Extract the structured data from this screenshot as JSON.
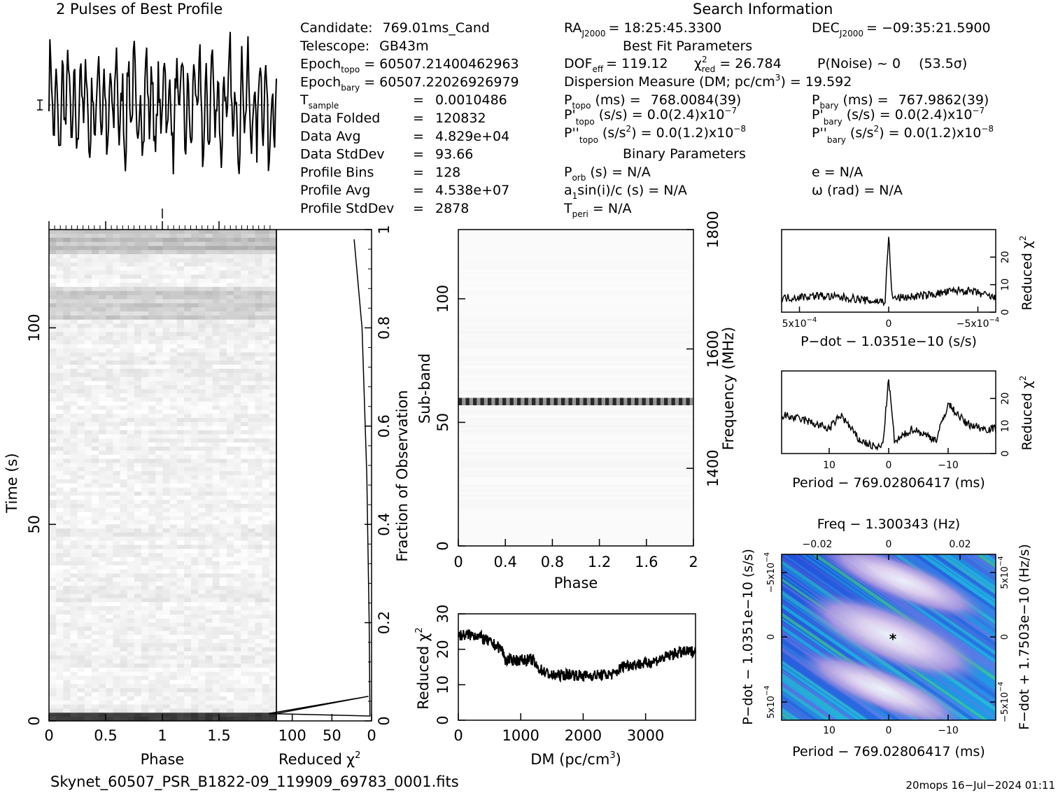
{
  "header": {
    "profile_title": "2 Pulses of Best Profile",
    "search_title": "Search Information",
    "best_fit_title": "Best Fit Parameters",
    "binary_title": "Binary Parameters"
  },
  "candidate_info": [
    {
      "label": "Candidate:",
      "value": "769.01ms_Cand"
    },
    {
      "label": "Telescope:",
      "value": "GB43m"
    },
    {
      "label": "Epoch",
      "sub": "topo",
      "value": "= 60507.21400462963"
    },
    {
      "label": "Epoch",
      "sub": "bary",
      "value": "= 60507.22026926979"
    },
    {
      "label": "T",
      "sub": "sample",
      "value": "0.0010486"
    },
    {
      "label": "Data Folded",
      "value": "120832"
    },
    {
      "label": "Data Avg",
      "value": "4.829e+04"
    },
    {
      "label": "Data StdDev",
      "value": "93.66"
    },
    {
      "label": "Profile Bins",
      "value": "128"
    },
    {
      "label": "Profile Avg",
      "value": "4.538e+07"
    },
    {
      "label": "Profile StdDev",
      "value": "2878"
    }
  ],
  "search_info": {
    "ra": {
      "label": "RA",
      "sub": "J2000",
      "value": "= 18:25:45.3300"
    },
    "dec": {
      "label": "DEC",
      "sub": "J2000",
      "value": "= −09:35:21.5900"
    },
    "dof": {
      "label": "DOF",
      "sub": "eff",
      "value": "= 119.12"
    },
    "chi2": {
      "label": "χ",
      "sup": "2",
      "sub": "red",
      "value": "= 26.784"
    },
    "pnoise": {
      "text": "P(Noise) ~ 0",
      "sigma": "(53.5σ)"
    },
    "dm": {
      "text": "Dispersion Measure (DM; pc/cm",
      "sup": "3",
      "value": ") = 19.592"
    },
    "p_topo": {
      "label": "P",
      "sub": "topo",
      "text": "(ms) =",
      "value": "768.0084(39)"
    },
    "p_bary": {
      "label": "P",
      "sub": "bary",
      "text": "(ms) =",
      "value": "767.9862(39)"
    },
    "pd_topo": {
      "label": "P'",
      "sub": "topo",
      "text": "(s/s) = 0.0(2.4)x10",
      "exp": "−7"
    },
    "pd_bary": {
      "label": "P'",
      "sub": "bary",
      "text": "(s/s) = 0.0(2.4)x10",
      "exp": "−7"
    },
    "pdd_topo": {
      "label": "P''",
      "sub": "topo",
      "text": "(s/s",
      "sup": "2",
      "text2": ") = 0.0(1.2)x10",
      "exp": "−8"
    },
    "pdd_bary": {
      "label": "P''",
      "sub": "bary",
      "text": "(s/s",
      "sup": "2",
      "text2": ") = 0.0(1.2)x10",
      "exp": "−8"
    },
    "porb": {
      "label": "P",
      "sub": "orb",
      "text": "(s) = N/A"
    },
    "ecc": {
      "text": "e = N/A"
    },
    "a1": {
      "label": "a",
      "sub": "1",
      "text": "sin(i)/c (s) = N/A"
    },
    "omega": {
      "text": "ω (rad) = N/A"
    },
    "tperi": {
      "label": "T",
      "sub": "peri",
      "text": "= N/A"
    }
  },
  "axes": {
    "time_label": "Time (s)",
    "phase_label": "Phase",
    "redchi_label": "Reduced",
    "chi_symbol": "χ",
    "chi_sup": "2",
    "fraction_label": "Fraction of Observation",
    "subband_label": "Sub-band",
    "frequency_label": "Frequency (MHz)",
    "dm_label": "DM (pc/cm",
    "dm_label_sup": "3",
    "dm_label_end": ")",
    "pdot_label": "P−dot − 1.0351e−10 (s/s)",
    "period_label": "Period − 769.02806417 (ms)",
    "freq_label": "Freq − 1.300343 (Hz)",
    "pdot_vert_label": "P−dot − 1.0351e−10 (s/s)",
    "fdot_vert_label": "F−dot + 1.7503e−10 (Hz/s)",
    "ticks": {
      "time_y": [
        "0",
        "50",
        "100"
      ],
      "phase_x": [
        "0",
        "0.5",
        "1",
        "1.5"
      ],
      "redchi_x": [
        "100",
        "50",
        "0"
      ],
      "fraction": [
        "0",
        "0.2",
        "0.4",
        "0.6",
        "0.8",
        "1"
      ],
      "subband_y": [
        "0",
        "50",
        "100"
      ],
      "phase2_x": [
        "0",
        "0.4",
        "0.8",
        "1.2",
        "1.6",
        "2"
      ],
      "freq_y": [
        "1400",
        "1600",
        "1800"
      ],
      "dm_x": [
        "0",
        "1000",
        "2000",
        "3000"
      ],
      "dm_y": [
        "0",
        "10",
        "20",
        "30"
      ],
      "pdot_x": [
        "5x10",
        "0",
        "−5x10"
      ],
      "pdot_x_exp": "−4",
      "rchi_y": [
        "0",
        "10",
        "20"
      ],
      "period_x": [
        "10",
        "0",
        "−10"
      ],
      "freq_top": [
        "−0.02",
        "0",
        "0.02"
      ],
      "pdot_left": [
        "−5x10",
        "0",
        "5x10"
      ],
      "pdot_left_exp": "−4",
      "fdot_right": [
        "5x10",
        "0",
        "−5x10"
      ],
      "fdot_right_exp": "−4"
    }
  },
  "footer": {
    "filename": "Skynet_60507_PSR_B1822-09_119909_69783_0001.fits",
    "stamp": "20mops 16−Jul−2024 01:11"
  },
  "chart_data": [
    {
      "type": "line",
      "title": "2 Pulses of Best Profile",
      "xlabel": "",
      "ylabel": "",
      "xlim": [
        0,
        2
      ],
      "description_of_shape": "noisy profile, ~20 peaks per pulse, amplitude large, two pulses"
    },
    {
      "type": "heatmap",
      "xlabel": "Phase",
      "ylabel": "Time (s)",
      "xlim": [
        0,
        2
      ],
      "ylim": [
        0,
        125
      ]
    },
    {
      "type": "line",
      "xlabel": "Reduced χ²",
      "ylabel": "Fraction of Observation",
      "xlim": [
        120,
        0
      ],
      "ylim": [
        0,
        1
      ],
      "x": [
        3,
        5,
        8,
        14,
        20,
        120,
        4,
        25
      ],
      "y": [
        0.0,
        0.05,
        0.2,
        0.5,
        0.8,
        0.01,
        0.04,
        0.98
      ]
    },
    {
      "type": "heatmap",
      "xlabel": "Phase",
      "ylabel": "Sub-band",
      "xlim": [
        0,
        2
      ],
      "ylim": [
        0,
        128
      ],
      "right_axis": {
        "label": "Frequency (MHz)",
        "ticks": [
          1400,
          1600,
          1800
        ]
      }
    },
    {
      "type": "line",
      "xlabel": "DM (pc/cm3)",
      "ylabel": "Reduced χ²",
      "xlim": [
        0,
        3800
      ],
      "ylim": [
        0,
        30
      ],
      "x": [
        0,
        300,
        500,
        700,
        750,
        1200,
        1250,
        1500,
        1800,
        2000,
        2500,
        2650,
        3000,
        3200,
        3500,
        3800
      ],
      "y": [
        24,
        24,
        22,
        20,
        17,
        17,
        15,
        12.5,
        13,
        12.5,
        13,
        15.5,
        16,
        17,
        19,
        19.5
      ]
    },
    {
      "type": "line",
      "xlabel": "P-dot − 1.0351e−10 (s/s)",
      "ylabel": "Reduced χ²",
      "xlim": [
        0.0006,
        -0.0006
      ],
      "ylim": [
        0,
        30
      ],
      "x": [
        0.0006,
        0.0004,
        0.0002,
        0.0001,
        2e-05,
        0,
        -2e-05,
        -0.0002,
        -0.0004,
        -0.0005,
        -0.0006
      ],
      "y": [
        5,
        6,
        5,
        4,
        4,
        28,
        5,
        6,
        8,
        7,
        5
      ]
    },
    {
      "type": "line",
      "xlabel": "Period − 769.02806417 (ms)",
      "ylabel": "Reduced χ²",
      "xlim": [
        18,
        -18
      ],
      "ylim": [
        0,
        30
      ],
      "x": [
        18,
        14,
        10,
        8,
        5,
        2,
        1,
        0,
        -1,
        -4,
        -8,
        -10,
        -13,
        -16,
        -18
      ],
      "y": [
        14,
        12,
        9,
        14,
        5,
        2,
        3,
        27,
        4,
        9,
        5,
        18,
        11,
        9,
        9
      ]
    },
    {
      "type": "heatmap",
      "xlabel": "Period − 769.02806417 (ms)",
      "ylabel": "P-dot − 1.0351e−10 (s/s)",
      "xlim": [
        18,
        -18
      ],
      "ylim": [
        0.0007,
        -0.0007
      ]
    }
  ]
}
